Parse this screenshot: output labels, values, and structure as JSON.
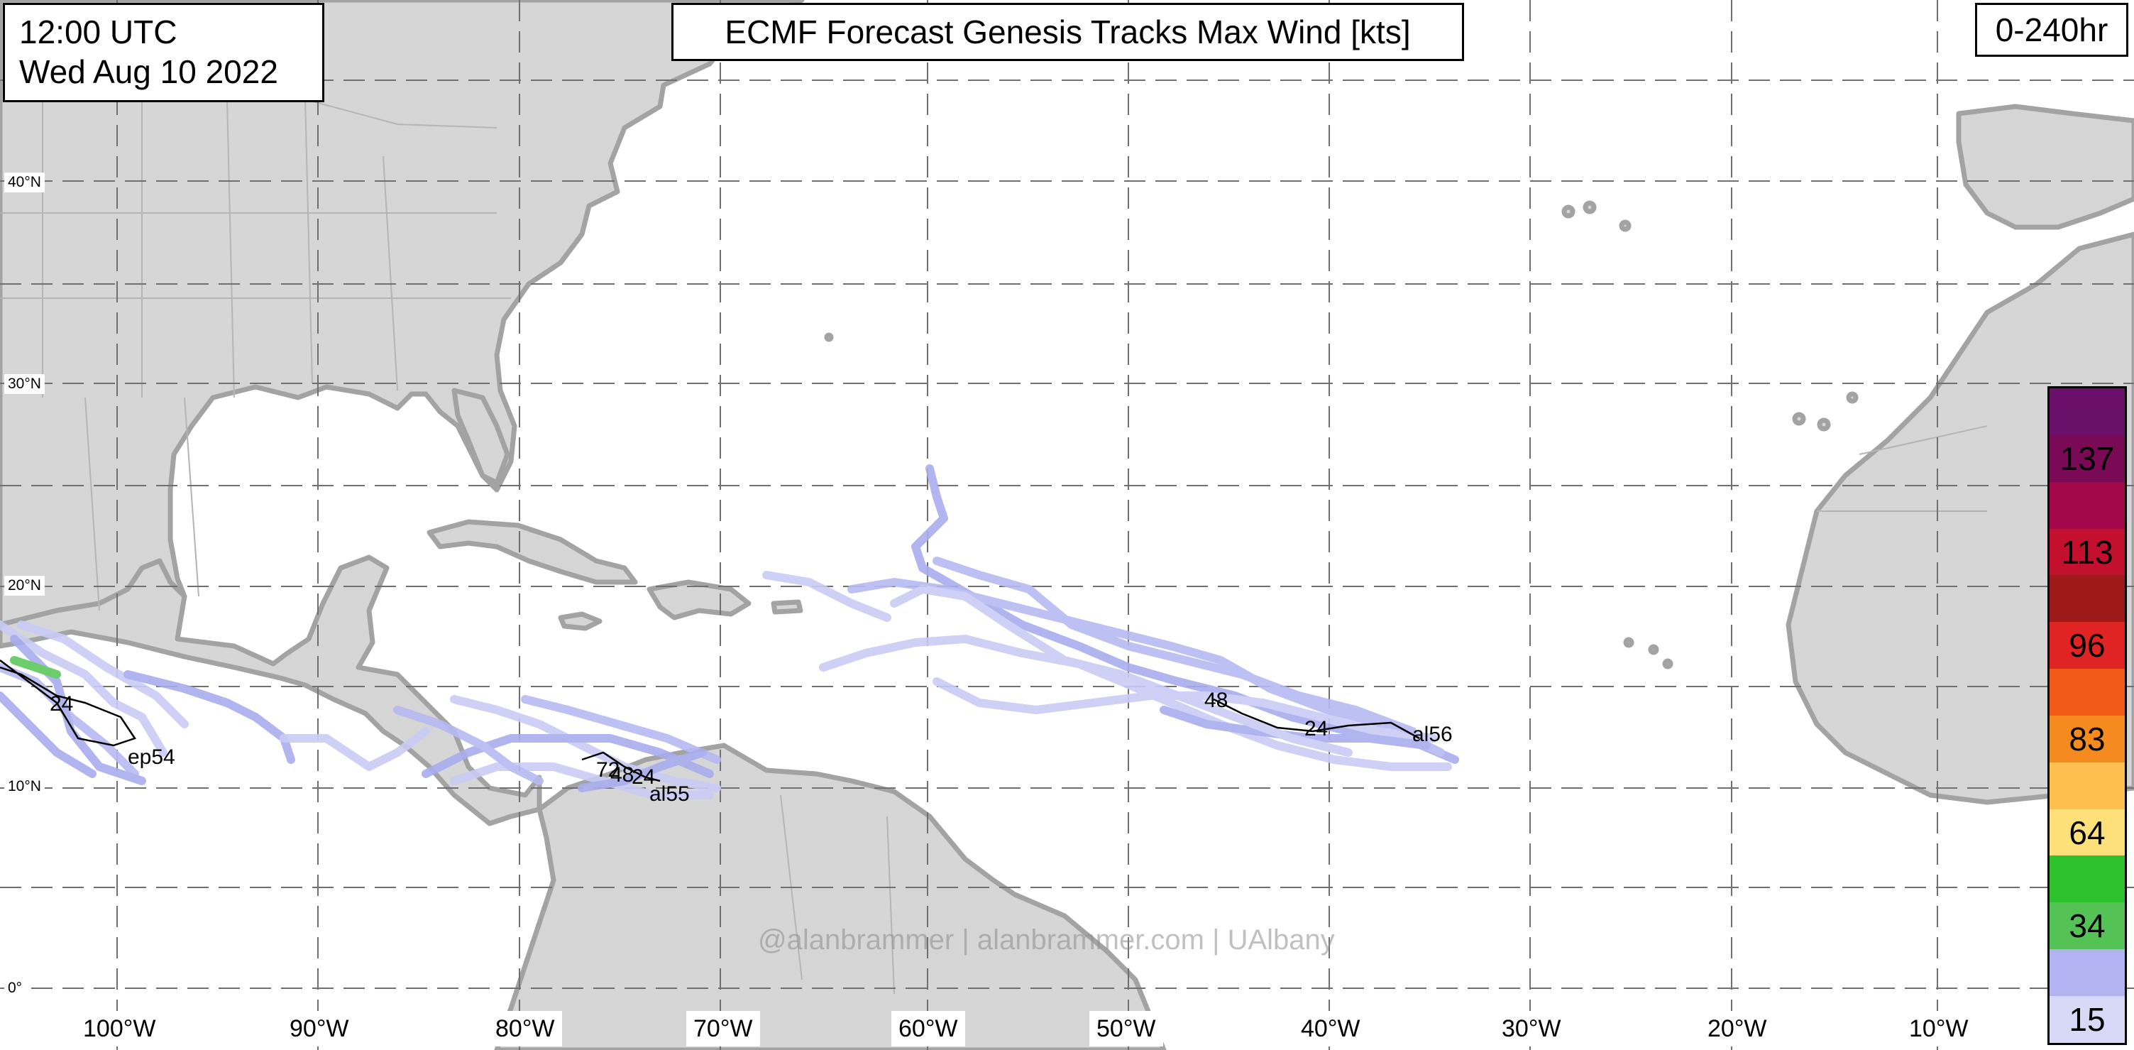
{
  "header": {
    "time": "12:00 UTC",
    "date": "Wed Aug 10 2022",
    "title": "ECMF Forecast Genesis Tracks Max Wind [kts]",
    "range": "0-240hr"
  },
  "watermark": "@alanbrammer | alanbrammer.com | UAlbany",
  "lon_labels": [
    "100°W",
    "90°W",
    "80°W",
    "70°W",
    "60°W",
    "50°W",
    "40°W",
    "30°W",
    "20°W",
    "10°W"
  ],
  "lat_labels": [
    "40°N",
    "30°N",
    "20°N",
    "10°N",
    "0°"
  ],
  "storms": {
    "ep54": {
      "name": "ep54",
      "hours": [
        "24"
      ]
    },
    "al55": {
      "name": "al55",
      "hours": [
        "72",
        "48",
        "24"
      ]
    },
    "al56": {
      "name": "al56",
      "hours": [
        "48",
        "24"
      ]
    }
  },
  "colorbar": {
    "labels": [
      "137",
      "113",
      "96",
      "83",
      "64",
      "34",
      "15"
    ],
    "colors": [
      "#6a0f6a",
      "#7a0a55",
      "#a3094a",
      "#c4102f",
      "#9e1a1a",
      "#e02424",
      "#f25a17",
      "#f58a1f",
      "#fdc050",
      "#fde07a",
      "#2fc22f",
      "#55c255",
      "#b3b3f2",
      "#d8d8f7"
    ],
    "unit": "kts"
  },
  "colors": {
    "land": "#d6d6d6",
    "coast": "#a3a3a3",
    "track_light": "#c9ccf5",
    "track_mid": "#a9aeee",
    "track_ts": "#5cc85c"
  }
}
